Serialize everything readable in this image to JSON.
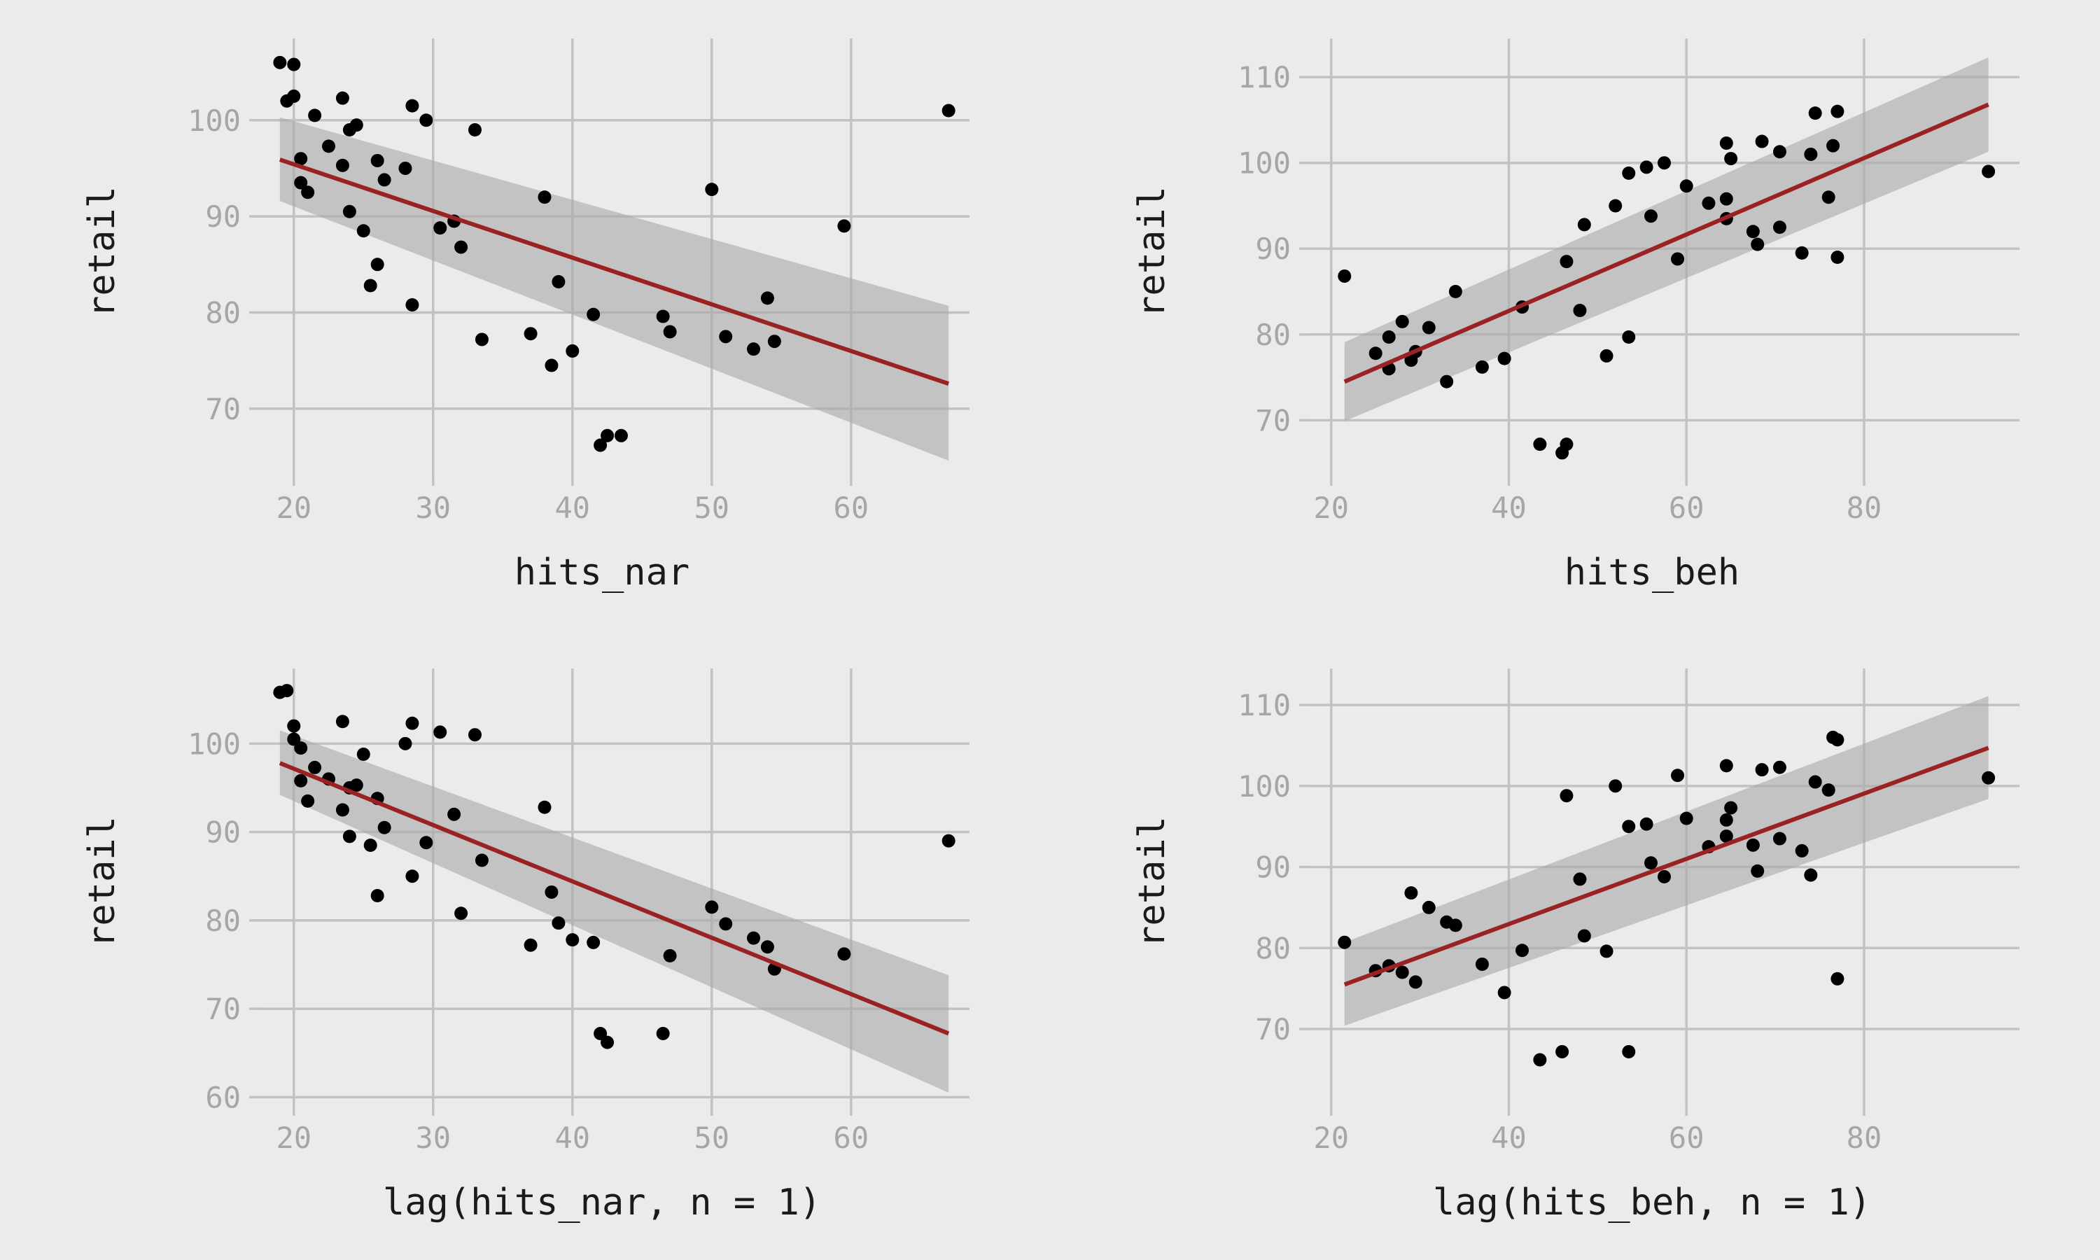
{
  "colors": {
    "background": "#ebebeb",
    "grid": "#c2c2c2",
    "tick_text": "#a6a6a6",
    "title_text": "#1a1a1a",
    "points": "#000000",
    "fit_line": "#9b2222",
    "band": "#a9a9a9"
  },
  "chart_data": [
    {
      "type": "scatter",
      "xlabel": "hits_nar",
      "ylabel": "retail",
      "xlim": [
        17.5,
        68.5
      ],
      "ylim": [
        63,
        108.5
      ],
      "xticks": [
        20,
        30,
        40,
        50,
        60
      ],
      "yticks": [
        70,
        80,
        90,
        100
      ],
      "xtick_labels": [
        "20",
        "30",
        "40",
        "50",
        "60"
      ],
      "ytick_labels": [
        "70",
        "80",
        "90",
        "100"
      ],
      "grid": true,
      "points": [
        [
          19,
          106
        ],
        [
          19.5,
          102
        ],
        [
          20,
          105.8
        ],
        [
          20,
          102.5
        ],
        [
          20.5,
          96
        ],
        [
          20.5,
          93.5
        ],
        [
          21,
          92.5
        ],
        [
          21.5,
          100.5
        ],
        [
          22.5,
          97.3
        ],
        [
          23.5,
          102.3
        ],
        [
          23.5,
          95.3
        ],
        [
          24,
          99
        ],
        [
          24,
          90.5
        ],
        [
          24.5,
          99.5
        ],
        [
          25,
          88.5
        ],
        [
          25.5,
          82.8
        ],
        [
          26,
          95.8
        ],
        [
          26,
          85
        ],
        [
          26.5,
          93.8
        ],
        [
          28,
          95
        ],
        [
          28.5,
          101.5
        ],
        [
          28.5,
          80.8
        ],
        [
          29.5,
          100
        ],
        [
          30.5,
          88.8
        ],
        [
          31.5,
          89.5
        ],
        [
          32,
          86.8
        ],
        [
          33,
          99
        ],
        [
          33.5,
          77.2
        ],
        [
          37,
          77.8
        ],
        [
          38,
          92
        ],
        [
          38.5,
          74.5
        ],
        [
          39,
          83.2
        ],
        [
          40,
          76
        ],
        [
          41.5,
          79.8
        ],
        [
          42,
          66.2
        ],
        [
          42.5,
          67.2
        ],
        [
          43.5,
          67.2
        ],
        [
          46.5,
          79.6
        ],
        [
          47,
          78
        ],
        [
          50,
          92.8
        ],
        [
          51,
          77.5
        ],
        [
          53,
          76.2
        ],
        [
          54,
          81.5
        ],
        [
          54.5,
          77
        ],
        [
          59.5,
          89
        ],
        [
          67,
          101
        ]
      ],
      "fit": {
        "x": [
          19,
          67
        ],
        "y": [
          95.9,
          72.6
        ]
      },
      "band": {
        "x": [
          19,
          67
        ],
        "upper": [
          100.3,
          80.7
        ],
        "lower": [
          91.6,
          64.6
        ]
      }
    },
    {
      "type": "scatter",
      "xlabel": "hits_beh",
      "ylabel": "retail",
      "xlim": [
        17.5,
        97.5
      ],
      "ylim": [
        63.5,
        114.5
      ],
      "xticks": [
        20,
        40,
        60,
        80
      ],
      "yticks": [
        70,
        80,
        90,
        100,
        110
      ],
      "xtick_labels": [
        "20",
        "40",
        "60",
        "80"
      ],
      "ytick_labels": [
        "70",
        "80",
        "90",
        "100",
        "110"
      ],
      "grid": true,
      "points": [
        [
          21.5,
          86.8
        ],
        [
          25,
          77.8
        ],
        [
          26.5,
          79.7
        ],
        [
          26.5,
          76
        ],
        [
          28,
          81.5
        ],
        [
          29,
          77
        ],
        [
          29.5,
          78
        ],
        [
          31,
          80.8
        ],
        [
          33,
          74.5
        ],
        [
          34,
          85
        ],
        [
          37,
          76.2
        ],
        [
          39.5,
          77.2
        ],
        [
          41.5,
          83.2
        ],
        [
          43.5,
          67.2
        ],
        [
          46,
          66.2
        ],
        [
          46.5,
          67.2
        ],
        [
          46.5,
          88.5
        ],
        [
          48,
          82.8
        ],
        [
          48.5,
          92.8
        ],
        [
          51,
          77.5
        ],
        [
          52,
          95
        ],
        [
          53.5,
          98.8
        ],
        [
          53.5,
          79.7
        ],
        [
          55.5,
          99.5
        ],
        [
          56,
          93.8
        ],
        [
          57.5,
          100
        ],
        [
          59,
          88.8
        ],
        [
          60,
          97.3
        ],
        [
          62.5,
          95.3
        ],
        [
          64.5,
          102.3
        ],
        [
          64.5,
          95.8
        ],
        [
          64.5,
          93.5
        ],
        [
          65,
          100.5
        ],
        [
          67.5,
          92
        ],
        [
          68,
          90.5
        ],
        [
          68.5,
          102.5
        ],
        [
          70.5,
          101.3
        ],
        [
          70.5,
          92.5
        ],
        [
          73,
          89.5
        ],
        [
          74,
          101
        ],
        [
          74.5,
          105.8
        ],
        [
          76,
          96
        ],
        [
          76.5,
          102
        ],
        [
          77,
          106
        ],
        [
          77,
          89
        ],
        [
          94,
          99
        ]
      ],
      "fit": {
        "x": [
          21.5,
          94
        ],
        "y": [
          74.5,
          106.8
        ]
      },
      "band": {
        "x": [
          21.5,
          94
        ],
        "upper": [
          79.1,
          112.3
        ],
        "lower": [
          69.9,
          101.3
        ]
      }
    },
    {
      "type": "scatter",
      "xlabel": "lag(hits_nar, n = 1)",
      "ylabel": "retail",
      "xlim": [
        17.5,
        68.5
      ],
      "ylim": [
        59,
        108.5
      ],
      "xticks": [
        20,
        30,
        40,
        50,
        60
      ],
      "yticks": [
        60,
        70,
        80,
        90,
        100
      ],
      "xtick_labels": [
        "20",
        "30",
        "40",
        "50",
        "60"
      ],
      "ytick_labels": [
        "60",
        "70",
        "80",
        "90",
        "100"
      ],
      "grid": true,
      "points": [
        [
          19,
          105.8
        ],
        [
          19.5,
          106
        ],
        [
          20,
          102
        ],
        [
          20,
          100.5
        ],
        [
          20.5,
          99.5
        ],
        [
          20.5,
          95.8
        ],
        [
          21,
          93.5
        ],
        [
          21.5,
          97.3
        ],
        [
          22.5,
          96
        ],
        [
          23.5,
          102.5
        ],
        [
          23.5,
          92.5
        ],
        [
          24,
          95
        ],
        [
          24,
          89.5
        ],
        [
          24.5,
          95.3
        ],
        [
          25,
          98.8
        ],
        [
          25.5,
          88.5
        ],
        [
          26,
          93.8
        ],
        [
          26,
          82.8
        ],
        [
          26.5,
          90.5
        ],
        [
          28,
          100
        ],
        [
          28.5,
          102.3
        ],
        [
          28.5,
          85
        ],
        [
          29.5,
          88.8
        ],
        [
          30.5,
          101.3
        ],
        [
          31.5,
          92
        ],
        [
          32,
          80.8
        ],
        [
          33,
          101
        ],
        [
          33.5,
          86.8
        ],
        [
          37,
          77.2
        ],
        [
          38,
          92.8
        ],
        [
          38.5,
          83.2
        ],
        [
          39,
          79.7
        ],
        [
          40,
          77.8
        ],
        [
          41.5,
          77.5
        ],
        [
          42,
          67.2
        ],
        [
          42.5,
          66.2
        ],
        [
          46.5,
          67.2
        ],
        [
          47,
          76
        ],
        [
          50,
          81.5
        ],
        [
          51,
          79.6
        ],
        [
          53,
          78
        ],
        [
          54,
          77
        ],
        [
          54.5,
          74.5
        ],
        [
          59.5,
          76.2
        ],
        [
          67,
          89
        ]
      ],
      "fit": {
        "x": [
          19,
          67
        ],
        "y": [
          97.8,
          67.2
        ]
      },
      "band": {
        "x": [
          19,
          67
        ],
        "upper": [
          101.5,
          73.8
        ],
        "lower": [
          94.2,
          60.5
        ]
      }
    },
    {
      "type": "scatter",
      "xlabel": "lag(hits_beh, n = 1)",
      "ylabel": "retail",
      "xlim": [
        17.5,
        97.5
      ],
      "ylim": [
        60.5,
        114.5
      ],
      "xticks": [
        20,
        40,
        60,
        80
      ],
      "yticks": [
        70,
        80,
        90,
        100,
        110
      ],
      "xtick_labels": [
        "20",
        "40",
        "60",
        "80"
      ],
      "ytick_labels": [
        "70",
        "80",
        "90",
        "100",
        "110"
      ],
      "grid": true,
      "points": [
        [
          21.5,
          80.7
        ],
        [
          25,
          77.2
        ],
        [
          26.5,
          77.8
        ],
        [
          28,
          77
        ],
        [
          29,
          86.8
        ],
        [
          29.5,
          75.8
        ],
        [
          31,
          85
        ],
        [
          33,
          83.2
        ],
        [
          34,
          82.8
        ],
        [
          37,
          78
        ],
        [
          39.5,
          74.5
        ],
        [
          41.5,
          79.7
        ],
        [
          43.5,
          66.2
        ],
        [
          46,
          67.2
        ],
        [
          46.5,
          98.8
        ],
        [
          48,
          88.5
        ],
        [
          48.5,
          81.5
        ],
        [
          51,
          79.6
        ],
        [
          52,
          100
        ],
        [
          53.5,
          95
        ],
        [
          53.5,
          67.2
        ],
        [
          55.5,
          95.3
        ],
        [
          56,
          90.5
        ],
        [
          57.5,
          88.8
        ],
        [
          59,
          101.3
        ],
        [
          60,
          96
        ],
        [
          62.5,
          92.5
        ],
        [
          64.5,
          102.5
        ],
        [
          64.5,
          95.8
        ],
        [
          64.5,
          93.8
        ],
        [
          65,
          97.3
        ],
        [
          67.5,
          92.7
        ],
        [
          68,
          89.5
        ],
        [
          68.5,
          102
        ],
        [
          70.5,
          102.3
        ],
        [
          70.5,
          93.5
        ],
        [
          73,
          92
        ],
        [
          74,
          89
        ],
        [
          74.5,
          100.5
        ],
        [
          76,
          99.5
        ],
        [
          76.5,
          106
        ],
        [
          77,
          105.7
        ],
        [
          77,
          76.2
        ],
        [
          94,
          101
        ]
      ],
      "fit": {
        "x": [
          21.5,
          94
        ],
        "y": [
          75.5,
          104.7
        ]
      },
      "band": {
        "x": [
          21.5,
          94
        ],
        "upper": [
          80.7,
          111.1
        ],
        "lower": [
          70.4,
          98.4
        ]
      }
    }
  ]
}
